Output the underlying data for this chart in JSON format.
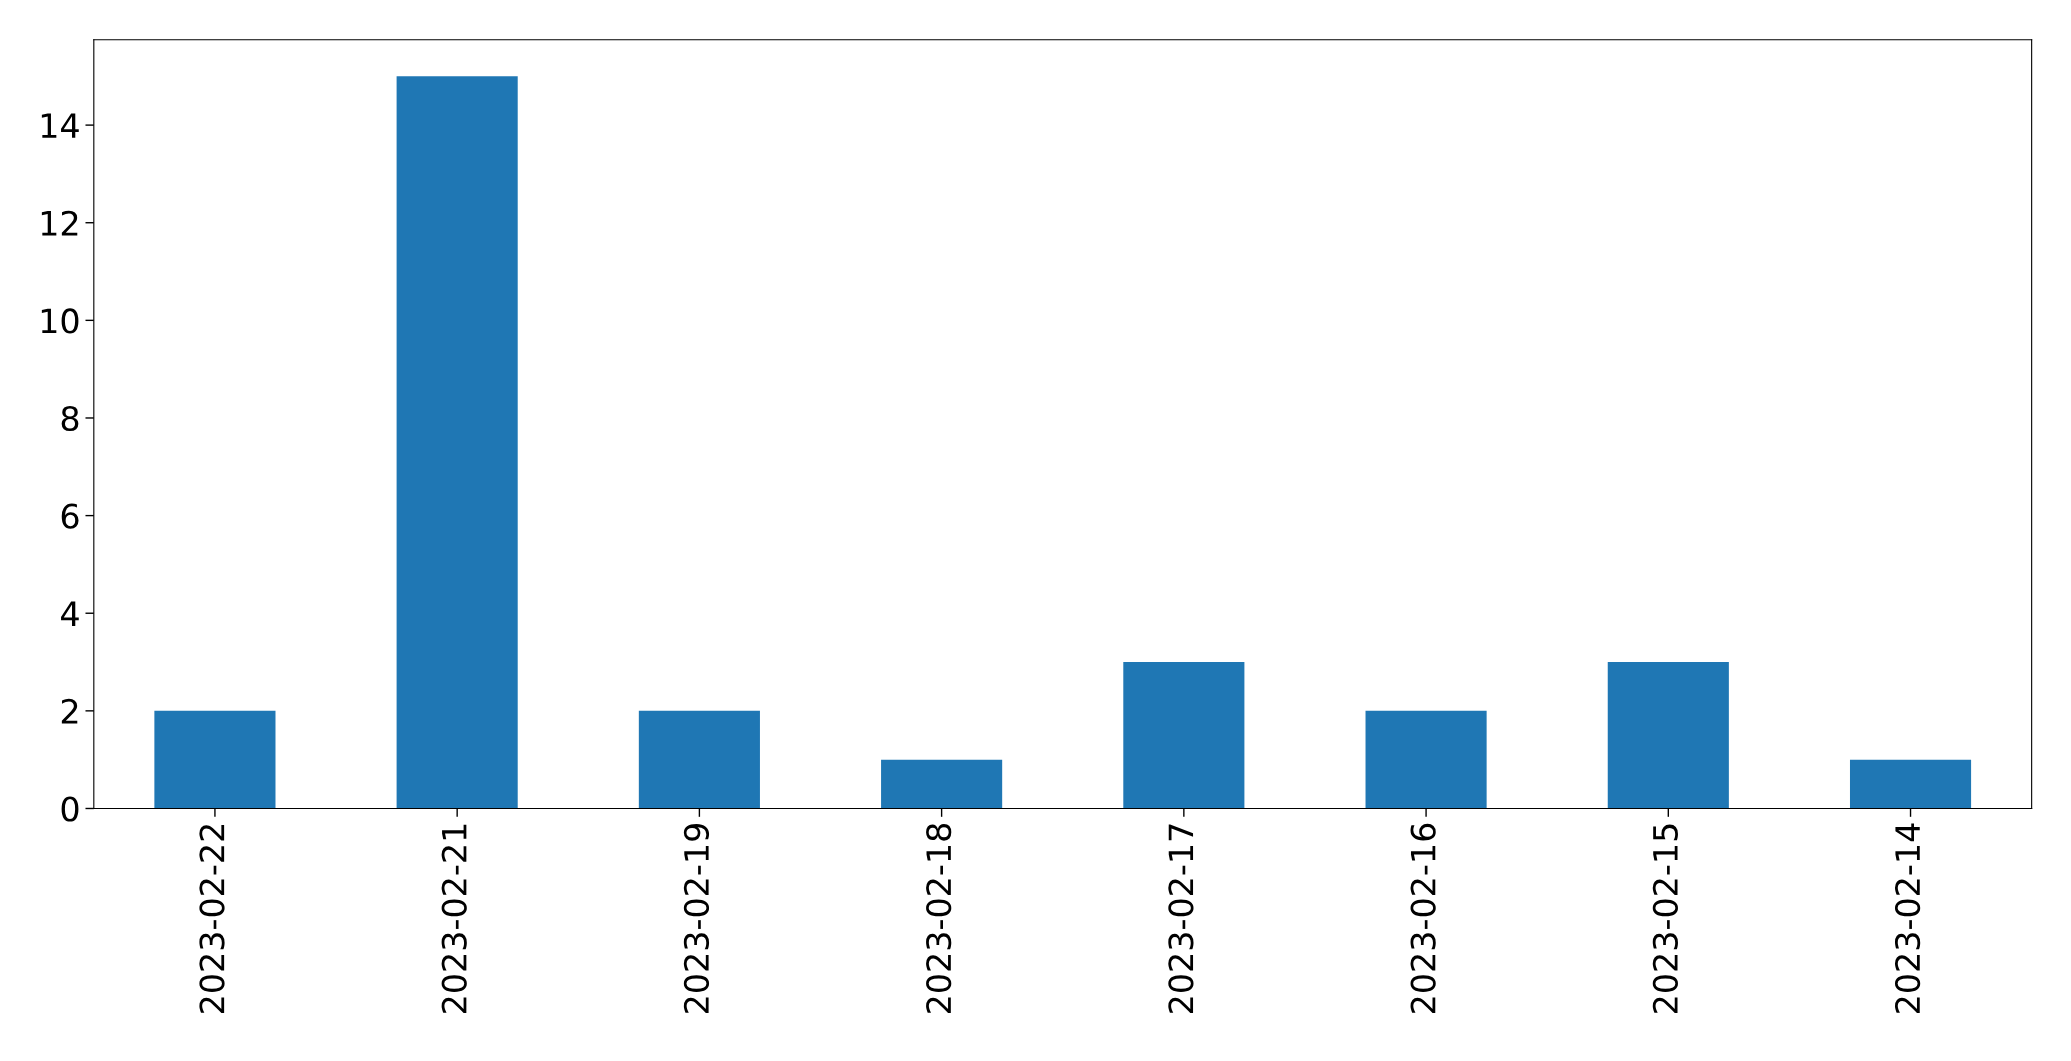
{
  "chart_data": {
    "type": "bar",
    "categories": [
      "2023-02-22",
      "2023-02-21",
      "2023-02-19",
      "2023-02-18",
      "2023-02-17",
      "2023-02-16",
      "2023-02-15",
      "2023-02-14"
    ],
    "values": [
      2,
      15,
      2,
      1,
      3,
      2,
      3,
      1
    ],
    "color": "#1f77b4",
    "ylim": [
      0,
      15.75
    ],
    "yticks": [
      0,
      2,
      4,
      6,
      8,
      10,
      12,
      14
    ],
    "grid": false,
    "legend": false
  }
}
